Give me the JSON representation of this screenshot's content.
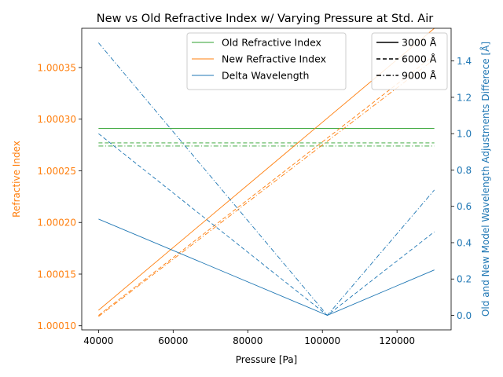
{
  "chart_data": {
    "type": "line",
    "title": "New vs Old Refractive Index w/ Varying Pressure at Std. Air",
    "xlabel": "Pressure [Pa]",
    "ylabel_left": "Refractive Index",
    "ylabel_right": "Old and New Model Wavelength Adjustments Differece [Å]",
    "xlim": [
      35500,
      134500
    ],
    "ylim_left": [
      1.000096,
      1.000388
    ],
    "ylim_right": [
      -0.08,
      1.58
    ],
    "x_ticks": [
      40000,
      60000,
      80000,
      100000,
      120000
    ],
    "x_tick_labels": [
      "40000",
      "60000",
      "80000",
      "100000",
      "120000"
    ],
    "y_left_ticks": [
      1.0001,
      1.00015,
      1.0002,
      1.00025,
      1.0003,
      1.00035
    ],
    "y_left_tick_labels": [
      "1.00010",
      "1.00015",
      "1.00020",
      "1.00025",
      "1.00030",
      "1.00035"
    ],
    "y_right_ticks": [
      0.0,
      0.2,
      0.4,
      0.6,
      0.8,
      1.0,
      1.2,
      1.4
    ],
    "y_right_tick_labels": [
      "0.0",
      "0.2",
      "0.4",
      "0.6",
      "0.8",
      "1.0",
      "1.2",
      "1.4"
    ],
    "grid": false,
    "colors": {
      "old": "#2ca02c",
      "new": "#ff7f0e",
      "delta": "#1f77b4",
      "axis_left": "#ff7f0e",
      "axis_right": "#1f77b4"
    },
    "legend_series": {
      "position": "top-center",
      "entries": [
        {
          "label": "Old Refractive Index",
          "color": "#2ca02c"
        },
        {
          "label": "New Refractive Index",
          "color": "#ff7f0e"
        },
        {
          "label": "Delta Wavelength",
          "color": "#1f77b4"
        }
      ]
    },
    "legend_wavelength": {
      "position": "top-right",
      "entries": [
        {
          "label": "3000 Å",
          "dash": "solid"
        },
        {
          "label": "6000 Å",
          "dash": "dashed"
        },
        {
          "label": "9000 Å",
          "dash": "dashdot"
        }
      ]
    },
    "series": [
      {
        "group": "Old Refractive Index",
        "wavelength": "3000 Å",
        "axis": "left",
        "dash": "solid",
        "color": "#2ca02c",
        "points": [
          [
            40000,
            1.000291
          ],
          [
            130000,
            1.000291
          ]
        ]
      },
      {
        "group": "Old Refractive Index",
        "wavelength": "6000 Å",
        "axis": "left",
        "dash": "dashed",
        "color": "#2ca02c",
        "points": [
          [
            40000,
            1.000277
          ],
          [
            130000,
            1.000277
          ]
        ]
      },
      {
        "group": "Old Refractive Index",
        "wavelength": "9000 Å",
        "axis": "left",
        "dash": "dashdot",
        "color": "#2ca02c",
        "points": [
          [
            40000,
            1.000274
          ],
          [
            130000,
            1.000274
          ]
        ]
      },
      {
        "group": "New Refractive Index",
        "wavelength": "3000 Å",
        "axis": "left",
        "dash": "solid",
        "color": "#ff7f0e",
        "points": [
          [
            40000,
            1.000115
          ],
          [
            130000,
            1.000388
          ]
        ]
      },
      {
        "group": "New Refractive Index",
        "wavelength": "6000 Å",
        "axis": "left",
        "dash": "dashed",
        "color": "#ff7f0e",
        "points": [
          [
            40000,
            1.00011
          ],
          [
            130000,
            1.000362
          ]
        ]
      },
      {
        "group": "New Refractive Index",
        "wavelength": "9000 Å",
        "axis": "left",
        "dash": "dashdot",
        "color": "#ff7f0e",
        "points": [
          [
            40000,
            1.000109
          ],
          [
            130000,
            1.000358
          ]
        ]
      },
      {
        "group": "Delta Wavelength",
        "wavelength": "3000 Å",
        "axis": "right",
        "dash": "solid",
        "color": "#1f77b4",
        "points": [
          [
            40000,
            0.53
          ],
          [
            101325,
            0.0
          ],
          [
            130000,
            0.25
          ]
        ]
      },
      {
        "group": "Delta Wavelength",
        "wavelength": "6000 Å",
        "axis": "right",
        "dash": "dashed",
        "color": "#1f77b4",
        "points": [
          [
            40000,
            1.0
          ],
          [
            101325,
            0.0
          ],
          [
            130000,
            0.46
          ]
        ]
      },
      {
        "group": "Delta Wavelength",
        "wavelength": "9000 Å",
        "axis": "right",
        "dash": "dashdot",
        "color": "#1f77b4",
        "points": [
          [
            40000,
            1.5
          ],
          [
            101325,
            0.0
          ],
          [
            130000,
            0.69
          ]
        ]
      }
    ]
  }
}
